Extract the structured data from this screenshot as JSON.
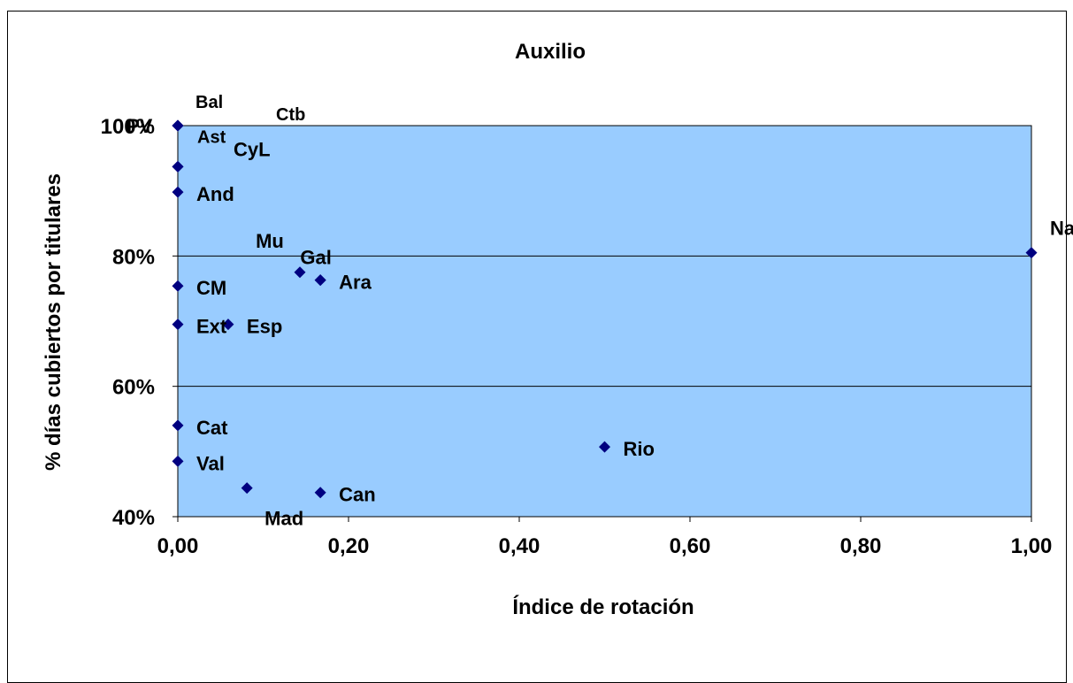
{
  "chart_data": {
    "type": "scatter",
    "title": "Auxilio",
    "xlabel": "Índice de rotación",
    "ylabel": "% días cubiertos por titulares",
    "xlim": [
      0,
      1
    ],
    "ylim": [
      0.4,
      1.0
    ],
    "x_ticks": [
      0,
      0.2,
      0.4,
      0.6,
      0.8,
      1.0
    ],
    "x_tick_labels": [
      "0,00",
      "0,20",
      "0,40",
      "0,60",
      "0,80",
      "1,00"
    ],
    "y_ticks": [
      0.4,
      0.6,
      0.8,
      1.0
    ],
    "y_tick_labels": [
      "40%",
      "60%",
      "80%",
      "100%"
    ],
    "grid": "horizontal major",
    "legend": "none",
    "colors": {
      "plot_area": "#99ccff",
      "marker": "#000080",
      "frame": "#000000"
    },
    "points": [
      {
        "label": "PV",
        "x": 0.0,
        "y": 1.0,
        "label_pos": "left"
      },
      {
        "label": "Bal",
        "x": 0.0,
        "y": 1.0,
        "label_pos": "above-right"
      },
      {
        "label": "Ctb",
        "x": 0.0,
        "y": 1.0,
        "label_pos": "far-above-right"
      },
      {
        "label": "Ast",
        "x": 0.0,
        "y": 0.937,
        "label_pos": "above-right"
      },
      {
        "label": "CyL",
        "x": 0.0,
        "y": 0.937,
        "label_pos": "far-above-right"
      },
      {
        "label": "And",
        "x": 0.0,
        "y": 0.898,
        "label_pos": "right"
      },
      {
        "label": "CM",
        "x": 0.0,
        "y": 0.754,
        "label_pos": "right"
      },
      {
        "label": "Ext",
        "x": 0.0,
        "y": 0.695,
        "label_pos": "right"
      },
      {
        "label": "Cat",
        "x": 0.0,
        "y": 0.54,
        "label_pos": "right"
      },
      {
        "label": "Val",
        "x": 0.0,
        "y": 0.485,
        "label_pos": "right"
      },
      {
        "label": "Esp",
        "x": 0.059,
        "y": 0.695,
        "label_pos": "right"
      },
      {
        "label": "Mad",
        "x": 0.081,
        "y": 0.444,
        "label_pos": "below-right"
      },
      {
        "label": "Mu",
        "x": 0.143,
        "y": 0.775,
        "label_pos": "above-left"
      },
      {
        "label": "Gal",
        "x": 0.167,
        "y": 0.763,
        "label_pos": "above"
      },
      {
        "label": "Ara",
        "x": 0.167,
        "y": 0.763,
        "label_pos": "right"
      },
      {
        "label": "Can",
        "x": 0.167,
        "y": 0.437,
        "label_pos": "right"
      },
      {
        "label": "Rio",
        "x": 0.5,
        "y": 0.507,
        "label_pos": "right"
      },
      {
        "label": "Nav",
        "x": 1.0,
        "y": 0.805,
        "label_pos": "above-right"
      }
    ]
  }
}
